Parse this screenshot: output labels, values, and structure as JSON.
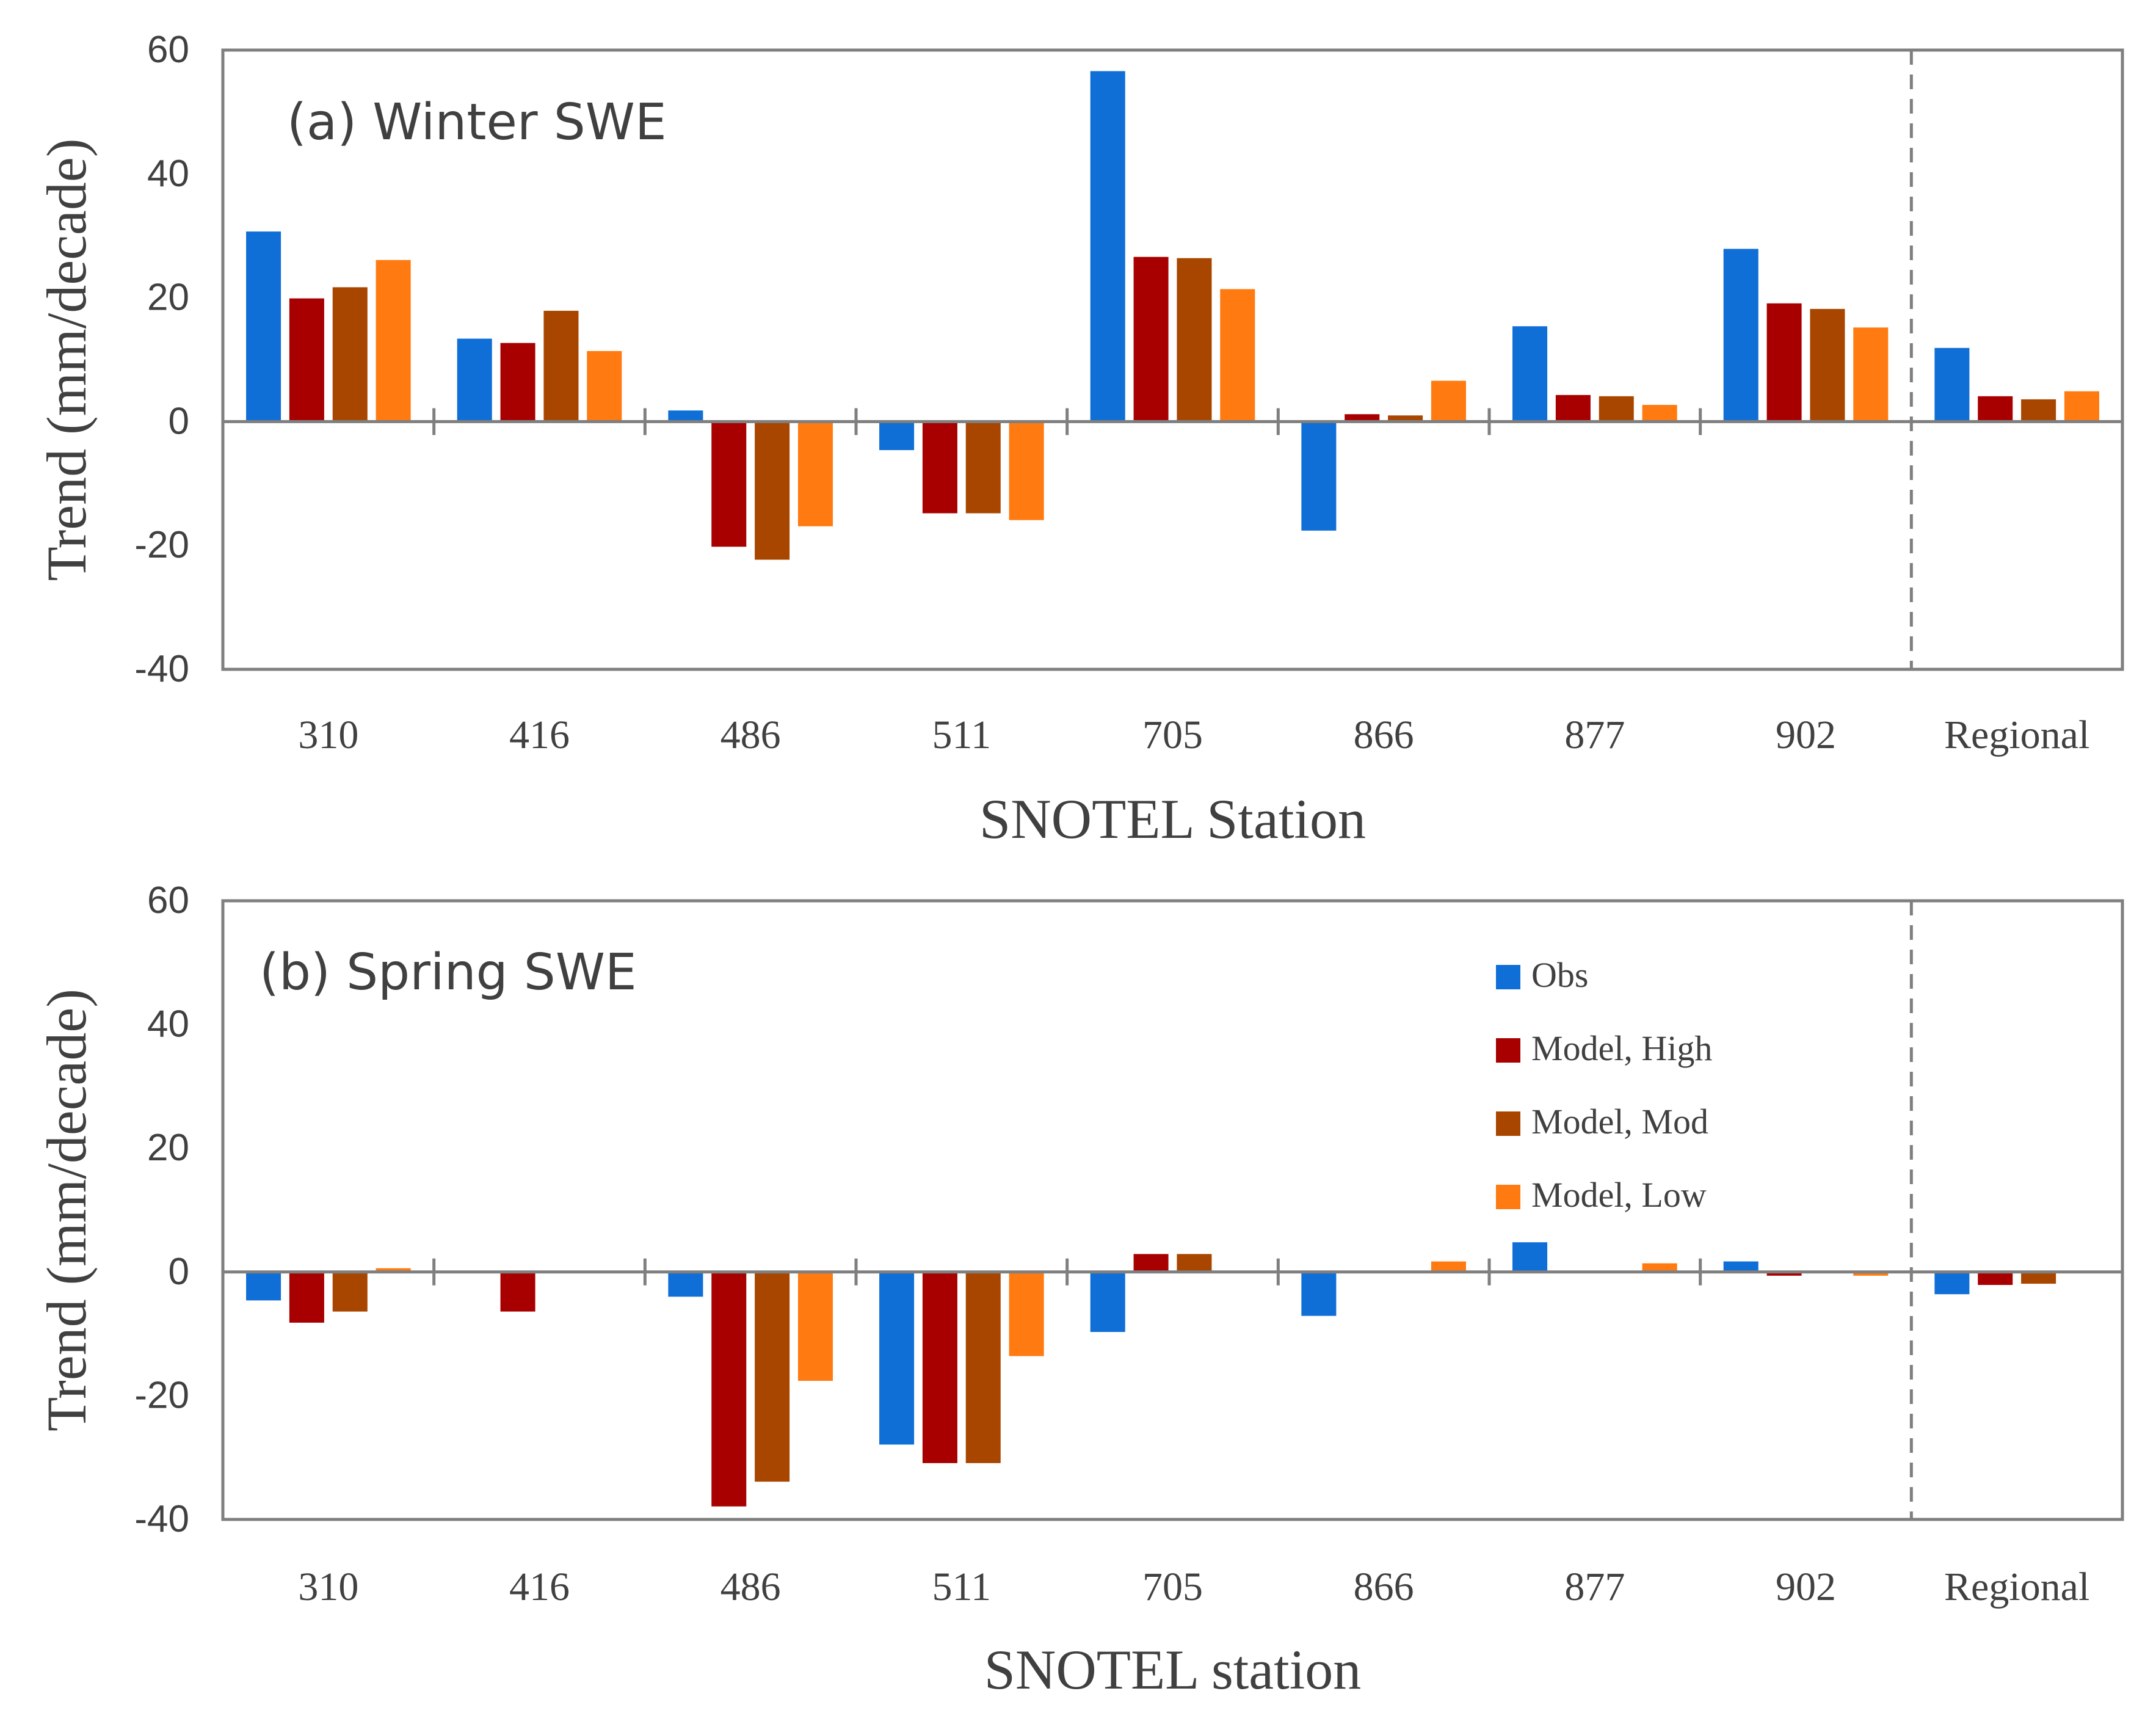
{
  "figure": {
    "colors": {
      "Obs": "#0f6fd6",
      "Model, High": "#a80000",
      "Model, Mod": "#a84600",
      "Model, Low": "#ff7a10",
      "axis": "#7f7f7f",
      "text": "#404040"
    }
  },
  "chart_data": [
    {
      "type": "bar",
      "title": "(a) Winter SWE",
      "xlabel": "SNOTEL Station",
      "ylabel": "Trend (mm/decade)",
      "ylim": [
        -40,
        60
      ],
      "yticks": [
        -40,
        -20,
        0,
        20,
        40,
        60
      ],
      "categories": [
        "310",
        "416",
        "486",
        "511",
        "705",
        "866",
        "877",
        "902",
        "Regional"
      ],
      "divider_after_category": "902",
      "grid": false,
      "series": [
        {
          "name": "Obs",
          "values": [
            30.7,
            13.4,
            1.8,
            -4.6,
            56.6,
            -17.6,
            15.4,
            27.9,
            11.9
          ]
        },
        {
          "name": "Model, High",
          "values": [
            19.9,
            12.7,
            -20.2,
            -14.8,
            26.6,
            1.2,
            4.3,
            19.1,
            4.1
          ]
        },
        {
          "name": "Model, Mod",
          "values": [
            21.7,
            17.9,
            -22.3,
            -14.8,
            26.4,
            1.0,
            4.1,
            18.2,
            3.6
          ]
        },
        {
          "name": "Model, Low",
          "values": [
            26.1,
            11.4,
            -16.9,
            -15.9,
            21.4,
            6.6,
            2.7,
            15.2,
            4.9
          ]
        }
      ]
    },
    {
      "type": "bar",
      "title": "(b) Spring SWE",
      "xlabel": "SNOTEL station",
      "ylabel": "Trend (mm/decade)",
      "ylim": [
        -40,
        60
      ],
      "yticks": [
        -40,
        -20,
        0,
        20,
        40,
        60
      ],
      "categories": [
        "310",
        "416",
        "486",
        "511",
        "705",
        "866",
        "877",
        "902",
        "Regional"
      ],
      "divider_after_category": "902",
      "grid": false,
      "legend": {
        "placement": "top-right",
        "entries": [
          "Obs",
          "Model, High",
          "Model, Mod",
          "Model, Low"
        ]
      },
      "series": [
        {
          "name": "Obs",
          "values": [
            -4.6,
            0,
            -4.0,
            -27.9,
            -9.7,
            -7.1,
            4.8,
            1.7,
            -3.6
          ]
        },
        {
          "name": "Model, High",
          "values": [
            -8.2,
            -6.4,
            -37.9,
            -30.9,
            2.9,
            0,
            0,
            -0.6,
            -2.1
          ]
        },
        {
          "name": "Model, Mod",
          "values": [
            -6.4,
            0,
            -33.9,
            -30.9,
            2.9,
            0,
            0,
            0,
            -1.9
          ]
        },
        {
          "name": "Model, Low",
          "values": [
            0.6,
            0,
            -17.6,
            -13.6,
            0,
            1.7,
            1.4,
            -0.6,
            0
          ]
        }
      ]
    }
  ]
}
